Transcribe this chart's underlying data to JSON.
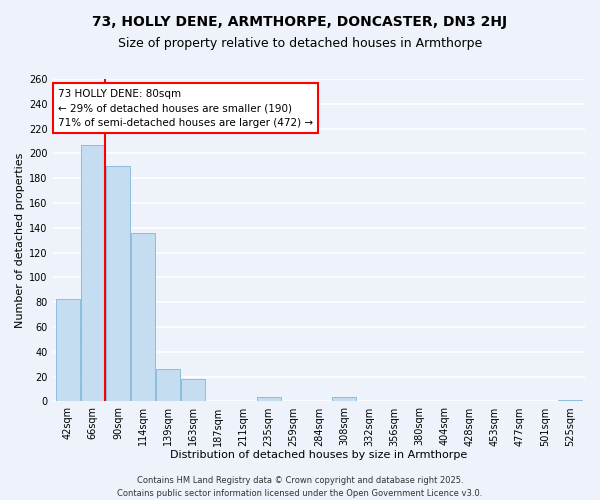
{
  "title": "73, HOLLY DENE, ARMTHORPE, DONCASTER, DN3 2HJ",
  "subtitle": "Size of property relative to detached houses in Armthorpe",
  "xlabel": "Distribution of detached houses by size in Armthorpe",
  "ylabel": "Number of detached properties",
  "bar_color": "#c5ddf0",
  "bar_edge_color": "#7fb8d8",
  "background_color": "#eef2fa",
  "grid_color": "#ffffff",
  "categories": [
    "42sqm",
    "66sqm",
    "90sqm",
    "114sqm",
    "139sqm",
    "163sqm",
    "187sqm",
    "211sqm",
    "235sqm",
    "259sqm",
    "284sqm",
    "308sqm",
    "332sqm",
    "356sqm",
    "380sqm",
    "404sqm",
    "428sqm",
    "453sqm",
    "477sqm",
    "501sqm",
    "525sqm"
  ],
  "values": [
    83,
    207,
    190,
    136,
    26,
    18,
    0,
    0,
    4,
    0,
    0,
    4,
    0,
    0,
    0,
    0,
    0,
    0,
    0,
    0,
    1
  ],
  "ylim": [
    0,
    260
  ],
  "yticks": [
    0,
    20,
    40,
    60,
    80,
    100,
    120,
    140,
    160,
    180,
    200,
    220,
    240,
    260
  ],
  "red_line_x": 1.5,
  "annotation_title": "73 HOLLY DENE: 80sqm",
  "annotation_line1": "← 29% of detached houses are smaller (190)",
  "annotation_line2": "71% of semi-detached houses are larger (472) →",
  "footer_line1": "Contains HM Land Registry data © Crown copyright and database right 2025.",
  "footer_line2": "Contains public sector information licensed under the Open Government Licence v3.0.",
  "title_fontsize": 10,
  "subtitle_fontsize": 9,
  "axis_label_fontsize": 8,
  "tick_fontsize": 7,
  "annotation_fontsize": 7.5,
  "footer_fontsize": 6
}
